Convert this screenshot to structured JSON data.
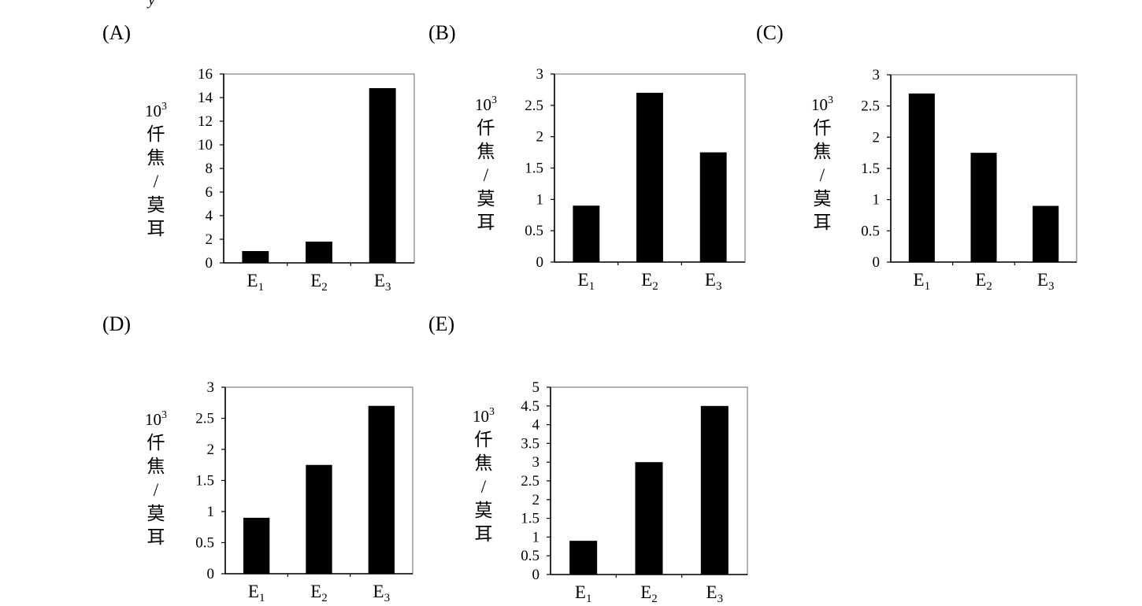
{
  "page": {
    "fragment_top": "y"
  },
  "chart_data": [
    {
      "panel": "(A)",
      "type": "bar",
      "categories": [
        {
          "main": "E",
          "sub": "1"
        },
        {
          "main": "E",
          "sub": "2"
        },
        {
          "main": "E",
          "sub": "3"
        }
      ],
      "values": [
        1.0,
        1.8,
        14.8
      ],
      "ylim": [
        0,
        16
      ],
      "yticks": [
        "0",
        "2",
        "4",
        "6",
        "8",
        "10",
        "12",
        "14",
        "16"
      ],
      "ylabel": {
        "base": "10",
        "sup": "3",
        "chars": [
          "仟",
          "焦",
          "/",
          "莫",
          "耳"
        ]
      },
      "xlabel": "",
      "title": "",
      "grid": false,
      "bar_color": "#000000"
    },
    {
      "panel": "(B)",
      "type": "bar",
      "categories": [
        {
          "main": "E",
          "sub": "1"
        },
        {
          "main": "E",
          "sub": "2"
        },
        {
          "main": "E",
          "sub": "3"
        }
      ],
      "values": [
        0.9,
        2.7,
        1.75
      ],
      "ylim": [
        0,
        3
      ],
      "yticks": [
        "0",
        "0.5",
        "1",
        "1.5",
        "2",
        "2.5",
        "3"
      ],
      "ylabel": {
        "base": "10",
        "sup": "3",
        "chars": [
          "仟",
          "焦",
          "/",
          "莫",
          "耳"
        ]
      },
      "xlabel": "",
      "title": "",
      "grid": false,
      "bar_color": "#000000"
    },
    {
      "panel": "(C)",
      "type": "bar",
      "categories": [
        {
          "main": "E",
          "sub": "1"
        },
        {
          "main": "E",
          "sub": "2"
        },
        {
          "main": "E",
          "sub": "3"
        }
      ],
      "values": [
        2.7,
        1.75,
        0.9
      ],
      "ylim": [
        0,
        3
      ],
      "yticks": [
        "0",
        "0.5",
        "1",
        "1.5",
        "2",
        "2.5",
        "3"
      ],
      "ylabel": {
        "base": "10",
        "sup": "3",
        "chars": [
          "仟",
          "焦",
          "/",
          "莫",
          "耳"
        ]
      },
      "xlabel": "",
      "title": "",
      "grid": false,
      "bar_color": "#000000"
    },
    {
      "panel": "(D)",
      "type": "bar",
      "categories": [
        {
          "main": "E",
          "sub": "1"
        },
        {
          "main": "E",
          "sub": "2"
        },
        {
          "main": "E",
          "sub": "3"
        }
      ],
      "values": [
        0.9,
        1.75,
        2.7
      ],
      "ylim": [
        0,
        3
      ],
      "yticks": [
        "0",
        "0.5",
        "1",
        "1.5",
        "2",
        "2.5",
        "3"
      ],
      "ylabel": {
        "base": "10",
        "sup": "3",
        "chars": [
          "仟",
          "焦",
          "/",
          "莫",
          "耳"
        ]
      },
      "xlabel": "",
      "title": "",
      "grid": false,
      "bar_color": "#000000"
    },
    {
      "panel": "(E)",
      "type": "bar",
      "categories": [
        {
          "main": "E",
          "sub": "1"
        },
        {
          "main": "E",
          "sub": "2"
        },
        {
          "main": "E",
          "sub": "3"
        }
      ],
      "values": [
        0.9,
        3.0,
        4.5
      ],
      "ylim": [
        0,
        5
      ],
      "yticks": [
        "0",
        "0.5",
        "1",
        "1.5",
        "2",
        "2.5",
        "3",
        "3.5",
        "4",
        "4.5",
        "5"
      ],
      "ylabel": {
        "base": "10",
        "sup": "3",
        "chars": [
          "仟",
          "焦",
          "/",
          "莫",
          "耳"
        ]
      },
      "xlabel": "",
      "title": "",
      "grid": false,
      "bar_color": "#000000"
    }
  ]
}
